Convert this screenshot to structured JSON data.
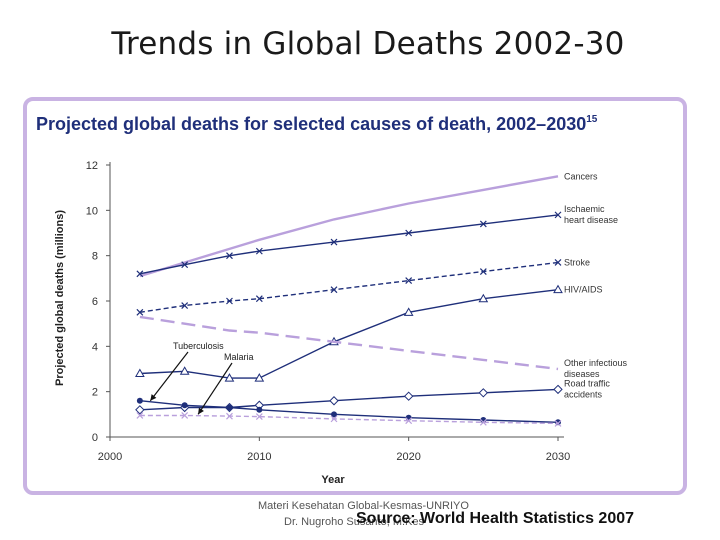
{
  "slide": {
    "title": "Trends in Global Deaths 2002-30",
    "footer_line1": "Materi Kesehatan Global-Kesmas-UNRIYO",
    "footer_line2": "Dr. Nugroho Susanto, M.Kes",
    "source": "Source: World Health Statistics 2007"
  },
  "chart_data": {
    "type": "line",
    "title": "Projected global deaths for selected causes of death, 2002–2030",
    "title_superscript": "15",
    "xlabel": "Year",
    "ylabel": "Projected global deaths (millions)",
    "xlim": [
      2000,
      2030
    ],
    "ylim": [
      0,
      12
    ],
    "xticks": [
      "2000",
      "2010",
      "2020",
      "2030"
    ],
    "yticks": [
      "0",
      "2",
      "4",
      "6",
      "8",
      "10",
      "12"
    ],
    "grid": false,
    "legend": "labels at line ends",
    "x": [
      2002,
      2005,
      2008,
      2010,
      2015,
      2020,
      2025,
      2030
    ],
    "series": [
      {
        "name": "Cancers",
        "color": "#b9a0dc",
        "marker": "none",
        "dash": "solid",
        "label_lines": [
          "Cancers"
        ],
        "values": [
          7.1,
          7.7,
          8.3,
          8.7,
          9.6,
          10.3,
          10.9,
          11.5
        ]
      },
      {
        "name": "Ischaemic heart disease",
        "color": "#1f2f7a",
        "marker": "x",
        "dash": "solid",
        "label_lines": [
          "Ischaemic",
          "heart disease"
        ],
        "values": [
          7.2,
          7.6,
          8.0,
          8.2,
          8.6,
          9.0,
          9.4,
          9.8
        ]
      },
      {
        "name": "Stroke",
        "color": "#1f2f7a",
        "marker": "x",
        "dash": "dash",
        "label_lines": [
          "Stroke"
        ],
        "values": [
          5.5,
          5.8,
          6.0,
          6.1,
          6.5,
          6.9,
          7.3,
          7.7
        ]
      },
      {
        "name": "HIV/AIDS",
        "color": "#1f2f7a",
        "marker": "triangle",
        "dash": "solid",
        "label_lines": [
          "HIV/AIDS"
        ],
        "values": [
          2.8,
          2.9,
          2.6,
          2.6,
          4.2,
          5.5,
          6.1,
          6.5
        ]
      },
      {
        "name": "Other infectious diseases",
        "color": "#b9a0dc",
        "marker": "none",
        "dash": "longdash",
        "label_lines": [
          "Other infectious",
          "diseases"
        ],
        "values": [
          5.3,
          5.0,
          4.7,
          4.6,
          4.2,
          3.8,
          3.4,
          3.0
        ]
      },
      {
        "name": "Road traffic accidents",
        "color": "#1f2f7a",
        "marker": "diamond",
        "dash": "solid",
        "label_lines": [
          "Road traffic",
          "accidents"
        ],
        "values": [
          1.2,
          1.3,
          1.3,
          1.4,
          1.6,
          1.8,
          1.95,
          2.1
        ]
      },
      {
        "name": "Tuberculosis",
        "color": "#1f2f7a",
        "marker": "dot",
        "dash": "solid",
        "label_lines": [],
        "values": [
          1.6,
          1.4,
          1.3,
          1.2,
          1.0,
          0.85,
          0.75,
          0.65
        ]
      },
      {
        "name": "Malaria",
        "color": "#b9a0dc",
        "marker": "x",
        "dash": "dash",
        "label_lines": [],
        "values": [
          0.95,
          0.95,
          0.92,
          0.9,
          0.8,
          0.72,
          0.65,
          0.6
        ]
      }
    ],
    "annotations": [
      {
        "text": "Tuberculosis",
        "x": 2002.7,
        "y": 1.6
      },
      {
        "text": "Malaria",
        "x": 2005.9,
        "y": 1.0
      }
    ]
  }
}
